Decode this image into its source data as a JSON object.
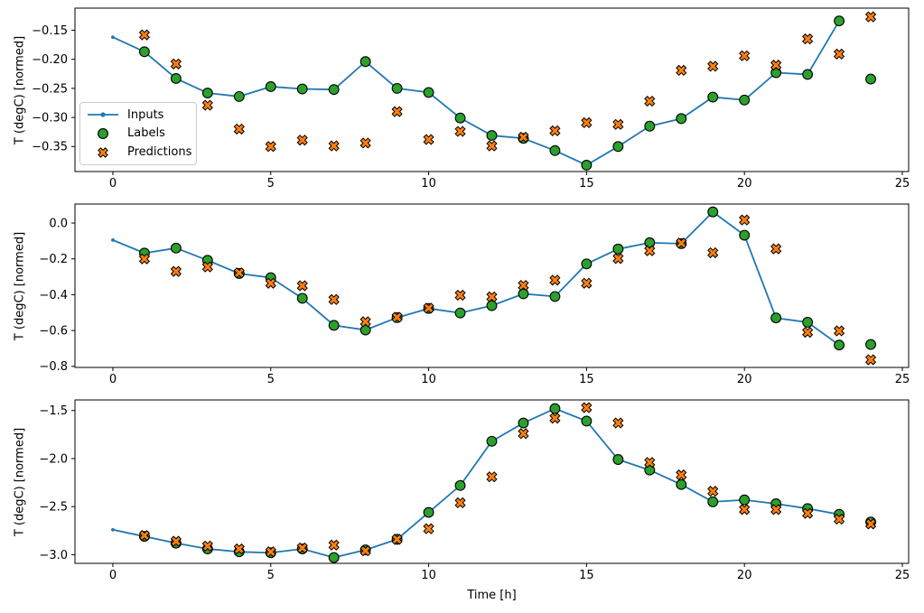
{
  "figure": {
    "xlabel": "Time [h]",
    "ylabel": "T (degC) [normed]",
    "legend": {
      "position": "center-left-of-first-subplot",
      "items": [
        {
          "label": "Inputs",
          "marker": "line-with-dot"
        },
        {
          "label": "Labels",
          "marker": "filled-circle"
        },
        {
          "label": "Predictions",
          "marker": "thick-x"
        }
      ]
    },
    "colors": {
      "inputs": "#1f77b4",
      "labels": "#2ca02c",
      "predictions": "#ff7f0e",
      "marker_edge": "#000000",
      "axis": "#000000",
      "legend_border": "#cccccc",
      "background": "#ffffff"
    }
  },
  "chart_data": [
    {
      "type": "line",
      "subplot": 1,
      "ylabel": "T (degC) [normed]",
      "grid": false,
      "xlim": [
        -1.2,
        25.2
      ],
      "ylim": [
        -0.393,
        -0.112
      ],
      "xticks": [
        0,
        5,
        10,
        15,
        20,
        25
      ],
      "xticklabels": [
        "0",
        "5",
        "10",
        "15",
        "20",
        "25"
      ],
      "yticks": [
        -0.15,
        -0.2,
        -0.25,
        -0.3,
        -0.35
      ],
      "yticklabels": [
        "−0.15",
        "−0.20",
        "−0.25",
        "−0.30",
        "−0.35"
      ],
      "series": [
        {
          "name": "Inputs",
          "style": "line-dot",
          "x": [
            0,
            1,
            2,
            3,
            4,
            5,
            6,
            7,
            8,
            9,
            10,
            11,
            12,
            13,
            14,
            15,
            16,
            17,
            18,
            19,
            20,
            21,
            22,
            23
          ],
          "values": [
            -0.162,
            -0.187,
            -0.233,
            -0.258,
            -0.264,
            -0.247,
            -0.251,
            -0.252,
            -0.204,
            -0.25,
            -0.257,
            -0.301,
            -0.331,
            -0.336,
            -0.357,
            -0.382,
            -0.35,
            -0.315,
            -0.302,
            -0.265,
            -0.27,
            -0.223,
            -0.226,
            -0.134
          ]
        },
        {
          "name": "Labels",
          "style": "circle",
          "x": [
            1,
            2,
            3,
            4,
            5,
            6,
            7,
            8,
            9,
            10,
            11,
            12,
            13,
            14,
            15,
            16,
            17,
            18,
            19,
            20,
            21,
            22,
            23,
            24
          ],
          "values": [
            -0.187,
            -0.233,
            -0.258,
            -0.264,
            -0.247,
            -0.251,
            -0.252,
            -0.204,
            -0.25,
            -0.257,
            -0.301,
            -0.331,
            -0.336,
            -0.357,
            -0.382,
            -0.35,
            -0.315,
            -0.302,
            -0.265,
            -0.27,
            -0.223,
            -0.226,
            -0.134,
            -0.234
          ]
        },
        {
          "name": "Predictions",
          "style": "x-marker",
          "x": [
            1,
            2,
            3,
            4,
            5,
            6,
            7,
            8,
            9,
            10,
            11,
            12,
            13,
            14,
            15,
            16,
            17,
            18,
            19,
            20,
            21,
            22,
            23,
            24
          ],
          "values": [
            -0.158,
            -0.208,
            -0.279,
            -0.32,
            -0.35,
            -0.339,
            -0.349,
            -0.344,
            -0.29,
            -0.338,
            -0.324,
            -0.349,
            -0.334,
            -0.323,
            -0.309,
            -0.312,
            -0.272,
            -0.219,
            -0.212,
            -0.194,
            -0.21,
            -0.165,
            -0.191,
            -0.127
          ]
        }
      ]
    },
    {
      "type": "line",
      "subplot": 2,
      "ylabel": "T (degC) [normed]",
      "grid": false,
      "xlim": [
        -1.2,
        25.2
      ],
      "ylim": [
        -0.806,
        0.106
      ],
      "xticks": [
        0,
        5,
        10,
        15,
        20,
        25
      ],
      "xticklabels": [
        "0",
        "5",
        "10",
        "15",
        "20",
        "25"
      ],
      "yticks": [
        0.0,
        -0.2,
        -0.4,
        -0.6,
        -0.8
      ],
      "yticklabels": [
        "0.0",
        "−0.2",
        "−0.4",
        "−0.6",
        "−0.8"
      ],
      "series": [
        {
          "name": "Inputs",
          "style": "line-dot",
          "x": [
            0,
            1,
            2,
            3,
            4,
            5,
            6,
            7,
            8,
            9,
            10,
            11,
            12,
            13,
            14,
            15,
            16,
            17,
            18,
            19,
            20,
            21,
            22,
            23
          ],
          "values": [
            -0.095,
            -0.168,
            -0.14,
            -0.208,
            -0.282,
            -0.305,
            -0.42,
            -0.571,
            -0.597,
            -0.528,
            -0.477,
            -0.502,
            -0.461,
            -0.395,
            -0.41,
            -0.228,
            -0.145,
            -0.11,
            -0.115,
            0.062,
            -0.068,
            -0.53,
            -0.554,
            -0.681
          ]
        },
        {
          "name": "Labels",
          "style": "circle",
          "x": [
            1,
            2,
            3,
            4,
            5,
            6,
            7,
            8,
            9,
            10,
            11,
            12,
            13,
            14,
            15,
            16,
            17,
            18,
            19,
            20,
            21,
            22,
            23,
            24
          ],
          "values": [
            -0.168,
            -0.14,
            -0.208,
            -0.282,
            -0.305,
            -0.42,
            -0.571,
            -0.597,
            -0.528,
            -0.477,
            -0.502,
            -0.461,
            -0.395,
            -0.41,
            -0.228,
            -0.145,
            -0.11,
            -0.115,
            0.062,
            -0.068,
            -0.53,
            -0.554,
            -0.681,
            -0.678
          ]
        },
        {
          "name": "Predictions",
          "style": "x-marker",
          "x": [
            1,
            2,
            3,
            4,
            5,
            6,
            7,
            8,
            9,
            10,
            11,
            12,
            13,
            14,
            15,
            16,
            17,
            18,
            19,
            20,
            21,
            22,
            23,
            24
          ],
          "values": [
            -0.2,
            -0.27,
            -0.245,
            -0.278,
            -0.336,
            -0.35,
            -0.427,
            -0.551,
            -0.526,
            -0.475,
            -0.403,
            -0.412,
            -0.348,
            -0.319,
            -0.336,
            -0.198,
            -0.155,
            -0.112,
            -0.166,
            0.017,
            -0.144,
            -0.61,
            -0.602,
            -0.763
          ]
        }
      ]
    },
    {
      "type": "line",
      "subplot": 3,
      "ylabel": "T (degC) [normed]",
      "xlabel": "Time [h]",
      "grid": false,
      "xlim": [
        -1.2,
        25.2
      ],
      "ylim": [
        -3.09,
        -1.39
      ],
      "xticks": [
        0,
        5,
        10,
        15,
        20,
        25
      ],
      "xticklabels": [
        "0",
        "5",
        "10",
        "15",
        "20",
        "25"
      ],
      "yticks": [
        -1.5,
        -2.0,
        -2.5,
        -3.0
      ],
      "yticklabels": [
        "−1.5",
        "−2.0",
        "−2.5",
        "−3.0"
      ],
      "series": [
        {
          "name": "Inputs",
          "style": "line-dot",
          "x": [
            0,
            1,
            2,
            3,
            4,
            5,
            6,
            7,
            8,
            9,
            10,
            11,
            12,
            13,
            14,
            15,
            16,
            17,
            18,
            19,
            20,
            21,
            22,
            23
          ],
          "values": [
            -2.74,
            -2.81,
            -2.88,
            -2.94,
            -2.97,
            -2.98,
            -2.94,
            -3.03,
            -2.95,
            -2.84,
            -2.56,
            -2.28,
            -1.82,
            -1.63,
            -1.48,
            -1.61,
            -2.01,
            -2.12,
            -2.27,
            -2.45,
            -2.43,
            -2.47,
            -2.52,
            -2.58
          ]
        },
        {
          "name": "Labels",
          "style": "circle",
          "x": [
            1,
            2,
            3,
            4,
            5,
            6,
            7,
            8,
            9,
            10,
            11,
            12,
            13,
            14,
            15,
            16,
            17,
            18,
            19,
            20,
            21,
            22,
            23,
            24
          ],
          "values": [
            -2.81,
            -2.88,
            -2.94,
            -2.97,
            -2.98,
            -2.94,
            -3.03,
            -2.95,
            -2.84,
            -2.56,
            -2.28,
            -1.82,
            -1.63,
            -1.48,
            -1.61,
            -2.01,
            -2.12,
            -2.27,
            -2.45,
            -2.43,
            -2.47,
            -2.52,
            -2.58,
            -2.66
          ]
        },
        {
          "name": "Predictions",
          "style": "x-marker",
          "x": [
            1,
            2,
            3,
            4,
            5,
            6,
            7,
            8,
            9,
            10,
            11,
            12,
            13,
            14,
            15,
            16,
            17,
            18,
            19,
            20,
            21,
            22,
            23,
            24
          ],
          "values": [
            -2.8,
            -2.86,
            -2.91,
            -2.94,
            -2.97,
            -2.93,
            -2.9,
            -2.96,
            -2.84,
            -2.73,
            -2.46,
            -2.19,
            -1.74,
            -1.58,
            -1.47,
            -1.63,
            -2.04,
            -2.17,
            -2.34,
            -2.53,
            -2.53,
            -2.57,
            -2.63,
            -2.68
          ]
        }
      ]
    }
  ]
}
